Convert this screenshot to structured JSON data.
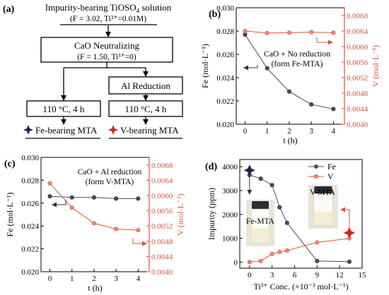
{
  "flow": {
    "label": "(a)",
    "top_line1": "Impurity-bearing TiOSO",
    "top_sub": "4",
    "top_line1_end": " solution",
    "top_params": "(F = 3.02, Ti³⁺=0.01M)",
    "neutral": "CaO Neutralizing",
    "neutral_params": "(F = 1.50, Ti³⁺=0)",
    "al": "Al Reduction",
    "cond_left": "110 °C, 4 h",
    "cond_right": "110 °C, 4 h",
    "out_left": "Fe-bearing MTA",
    "out_right": "V-bearing MTA"
  },
  "colors": {
    "fe": "#505050",
    "v": "#d9553f",
    "v_marker": "#f08a7a",
    "star_fe": "#1c2a4a",
    "star_v": "#cc2a1a"
  },
  "chart_data": [
    {
      "id": "b",
      "label": "(b)",
      "type": "line",
      "annotation_line1": "CaO + No reduction",
      "annotation_line2": "(form Fe-MTA)",
      "xlabel": "t (h)",
      "ylabel_left": "Fe (mol·L⁻¹)",
      "ylabel_right": "V (mol·L⁻¹)",
      "xlim": [
        -0.4,
        4.5
      ],
      "xticks": [
        0,
        1,
        2,
        3,
        4
      ],
      "yleft_lim": [
        0.02,
        0.03
      ],
      "yleft_ticks": [
        "0.020",
        "0.022",
        "0.024",
        "0.026",
        "0.028",
        "0.030"
      ],
      "yright_lim": [
        0.004,
        0.007
      ],
      "yright_ticks": [
        "0.0040",
        "0.0044",
        "0.0048",
        "0.0052",
        "0.0056",
        "0.0060",
        "0.0064",
        "0.0068"
      ],
      "series": [
        {
          "axis": "left",
          "x": [
            0,
            1,
            2,
            3,
            4
          ],
          "values": [
            0.0277,
            0.0248,
            0.0228,
            0.0217,
            0.0213
          ]
        },
        {
          "axis": "right",
          "x": [
            0,
            1,
            2,
            3,
            4
          ],
          "values": [
            0.0064,
            0.00635,
            0.00636,
            0.00637,
            0.00636
          ]
        }
      ]
    },
    {
      "id": "c",
      "label": "(c)",
      "type": "line",
      "annotation_line1": "CaO + Al reduction",
      "annotation_line2": "(form V-MTA)",
      "xlabel": "t (h)",
      "ylabel_left": "Fe (mol·L⁻¹)",
      "ylabel_right": "V (mol·L⁻¹)",
      "xlim": [
        -0.4,
        4.5
      ],
      "xticks": [
        0,
        1,
        2,
        3,
        4
      ],
      "yleft_lim": [
        0.02,
        0.03
      ],
      "yleft_ticks": [
        "0.020",
        "0.022",
        "0.024",
        "0.026",
        "0.028",
        "0.030"
      ],
      "yright_lim": [
        0.004,
        0.007
      ],
      "yright_ticks": [
        "0.0040",
        "0.0044",
        "0.0048",
        "0.0052",
        "0.0056",
        "0.0060",
        "0.0064",
        "0.0068"
      ],
      "series": [
        {
          "axis": "left",
          "x": [
            0,
            1,
            2,
            3,
            4
          ],
          "values": [
            0.0266,
            0.0265,
            0.0265,
            0.0264,
            0.0264
          ]
        },
        {
          "axis": "right",
          "x": [
            0,
            1,
            2,
            3,
            4
          ],
          "values": [
            0.00632,
            0.00568,
            0.00527,
            0.00512,
            0.00509
          ]
        }
      ]
    },
    {
      "id": "d",
      "label": "(d)",
      "type": "line",
      "xlabel": "Ti³⁺ Conc. (×10⁻³ mol·L⁻¹)",
      "ylabel": "Impurity (ppm)",
      "xlim": [
        -1.3,
        15
      ],
      "xticks": [
        0,
        3,
        6,
        9,
        12,
        15
      ],
      "ylim": [
        -250,
        4300
      ],
      "yticks": [
        0,
        1000,
        2000,
        3000,
        4000
      ],
      "legend": [
        "Fe",
        "V"
      ],
      "photo_left": "Fe-MTA",
      "photo_right": "V-MTA",
      "series": [
        {
          "name": "Fe",
          "x": [
            0,
            1.5,
            3,
            4,
            5,
            9,
            13.3
          ],
          "values": [
            3650,
            3500,
            3230,
            2300,
            1650,
            50,
            20
          ]
        },
        {
          "name": "V",
          "x": [
            0,
            1.5,
            3,
            4,
            5,
            9,
            13.3
          ],
          "values": [
            10,
            50,
            350,
            430,
            490,
            830,
            1000
          ]
        }
      ],
      "stars": [
        {
          "x": 0,
          "y": 3850,
          "kind": "fe"
        },
        {
          "x": 13.3,
          "y": 1230,
          "kind": "v"
        }
      ]
    }
  ]
}
